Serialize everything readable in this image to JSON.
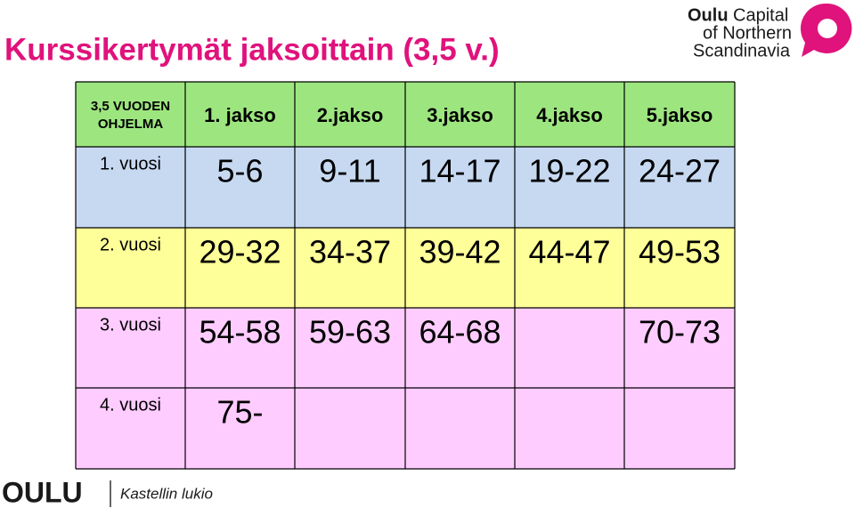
{
  "title": "Kurssikertymät jaksoittain (3,5 v.)",
  "logo": {
    "bold": "Oulu",
    "line1": "Capital",
    "line2": "of Northern",
    "line3": "Scandinavia"
  },
  "table": {
    "corner": [
      "3,5 VUODEN",
      "OHJELMA"
    ],
    "header": [
      "1. jakso",
      "2.jakso",
      "3.jakso",
      "4.jakso",
      "5.jakso"
    ],
    "rows": [
      {
        "label": "1. vuosi",
        "cells": [
          "5-6",
          "9-11",
          "14-17",
          "19-22",
          "24-27"
        ]
      },
      {
        "label": "2. vuosi",
        "cells": [
          "29-32",
          "34-37",
          "39-42",
          "44-47",
          "49-53"
        ]
      },
      {
        "label": "3. vuosi",
        "cells": [
          "54-58",
          "59-63",
          "64-68",
          null,
          "70-73"
        ]
      },
      {
        "label": "4. vuosi",
        "cells": [
          "75-",
          null,
          null,
          null,
          null
        ]
      }
    ]
  },
  "footer": {
    "brand": "OULU",
    "school": "Kastellin lukio"
  }
}
